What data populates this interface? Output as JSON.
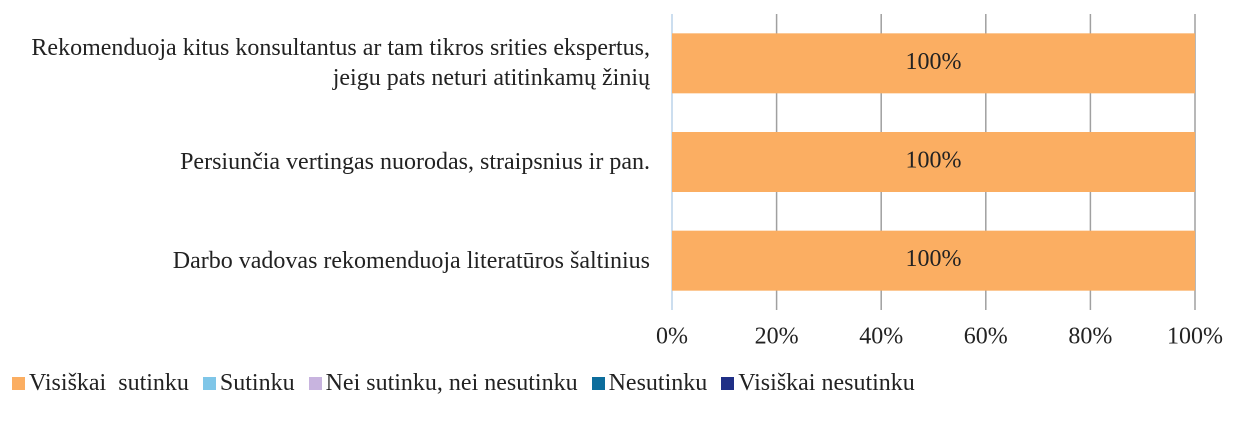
{
  "chart_data": {
    "type": "stacked-bar-horizontal",
    "categories": [
      "Rekomenduoja kitus konsultantus ar tam tikros srities ekspertus, jeigu pats neturi atitinkamų žinių",
      "Persiunčia vertingas nuorodas, straipsnius ir pan.",
      "Darbo vadovas rekomenduoja literatūros šaltinius"
    ],
    "series": [
      {
        "name": "Visiškai  sutinku",
        "color": "#fbae62",
        "values": [
          100,
          100,
          100
        ],
        "value_labels": [
          "100%",
          "100%",
          "100%"
        ]
      },
      {
        "name": "Sutinku",
        "color": "#7fc6e8",
        "values": [
          0,
          0,
          0
        ]
      },
      {
        "name": "Nei sutinku, nei nesutinku",
        "color": "#c8b4df",
        "values": [
          0,
          0,
          0
        ]
      },
      {
        "name": "Nesutinku",
        "color": "#0c6d9c",
        "values": [
          0,
          0,
          0
        ]
      },
      {
        "name": "Visiškai nesutinku",
        "color": "#1f2f86",
        "values": [
          0,
          0,
          0
        ]
      }
    ],
    "xlim": [
      0,
      100
    ],
    "xticks": [
      {
        "value": 0,
        "label": "0%"
      },
      {
        "value": 20,
        "label": "20%"
      },
      {
        "value": 40,
        "label": "40%"
      },
      {
        "value": 60,
        "label": "60%"
      },
      {
        "value": 80,
        "label": "80%"
      },
      {
        "value": 100,
        "label": "100%"
      }
    ],
    "grid": true,
    "legend": "bottom"
  }
}
